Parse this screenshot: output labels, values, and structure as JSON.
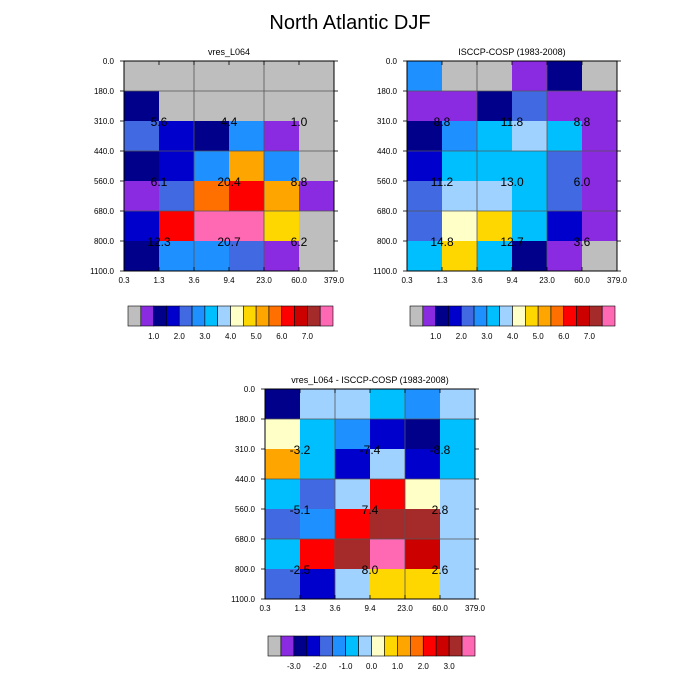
{
  "title": "North Atlantic DJF",
  "palette": [
    "#bebebe",
    "#8a2be2",
    "#00008b",
    "#0000cd",
    "#4169e1",
    "#1e90ff",
    "#00bfff",
    "#a0d2ff",
    "#ffffc8",
    "#ffd700",
    "#ffa500",
    "#ff7000",
    "#ff0000",
    "#cd0000",
    "#a52a2a",
    "#ff69b4"
  ],
  "chart_data": [
    {
      "type": "heatmap",
      "title": "vres_L064",
      "x_ticks": [
        "0.3",
        "1.3",
        "3.6",
        "9.4",
        "23.0",
        "60.0",
        "379.0"
      ],
      "y_ticks": [
        "0.0",
        "180.0",
        "310.0",
        "440.0",
        "560.0",
        "680.0",
        "800.0",
        "1100.0"
      ],
      "cells": [
        [
          0,
          0,
          0,
          0,
          0,
          0
        ],
        [
          2,
          0,
          0,
          0,
          0,
          0
        ],
        [
          4,
          3,
          2,
          5,
          1,
          0
        ],
        [
          2,
          3,
          5,
          10,
          5,
          0
        ],
        [
          1,
          4,
          11,
          12,
          10,
          1
        ],
        [
          3,
          12,
          15,
          15,
          9,
          0
        ],
        [
          2,
          5,
          5,
          4,
          1,
          0
        ]
      ],
      "box_values": [
        [
          "5.6",
          "4.4",
          "1.0"
        ],
        [
          "6.1",
          "20.4",
          "8.8"
        ],
        [
          "12.3",
          "20.7",
          "6.2"
        ]
      ],
      "colorbar_labels": [
        "1.0",
        "2.0",
        "3.0",
        "4.0",
        "5.0",
        "6.0",
        "7.0"
      ]
    },
    {
      "type": "heatmap",
      "title": "ISCCP-COSP (1983-2008)",
      "x_ticks": [
        "0.3",
        "1.3",
        "3.6",
        "9.4",
        "23.0",
        "60.0",
        "379.0"
      ],
      "y_ticks": [
        "0.0",
        "180.0",
        "310.0",
        "440.0",
        "560.0",
        "680.0",
        "800.0",
        "1100.0"
      ],
      "cells": [
        [
          5,
          0,
          0,
          1,
          2,
          0
        ],
        [
          1,
          1,
          2,
          4,
          1,
          1
        ],
        [
          2,
          5,
          6,
          7,
          6,
          1
        ],
        [
          3,
          6,
          6,
          6,
          4,
          1
        ],
        [
          4,
          7,
          7,
          6,
          4,
          1
        ],
        [
          4,
          8,
          9,
          6,
          3,
          1
        ],
        [
          6,
          9,
          6,
          2,
          1,
          0
        ]
      ],
      "box_values": [
        [
          "8.8",
          "11.8",
          "8.8"
        ],
        [
          "11.2",
          "13.0",
          "6.0"
        ],
        [
          "14.8",
          "12.7",
          "3.6"
        ]
      ],
      "colorbar_labels": [
        "1.0",
        "2.0",
        "3.0",
        "4.0",
        "5.0",
        "6.0",
        "7.0"
      ]
    },
    {
      "type": "heatmap",
      "title": "vres_L064 - ISCCP-COSP (1983-2008)",
      "x_ticks": [
        "0.3",
        "1.3",
        "3.6",
        "9.4",
        "23.0",
        "60.0",
        "379.0"
      ],
      "y_ticks": [
        "0.0",
        "180.0",
        "310.0",
        "440.0",
        "560.0",
        "680.0",
        "800.0",
        "1100.0"
      ],
      "cells": [
        [
          2,
          7,
          7,
          6,
          5,
          7
        ],
        [
          8,
          6,
          5,
          3,
          2,
          6
        ],
        [
          10,
          6,
          3,
          7,
          3,
          6
        ],
        [
          6,
          4,
          7,
          12,
          8,
          7
        ],
        [
          4,
          5,
          12,
          14,
          14,
          7
        ],
        [
          6,
          12,
          14,
          15,
          13,
          7
        ],
        [
          4,
          3,
          7,
          9,
          9,
          7
        ]
      ],
      "box_values": [
        [
          "-3.2",
          "-7.4",
          "-8.8"
        ],
        [
          "-5.1",
          "7.4",
          "2.8"
        ],
        [
          "-2.5",
          "8.0",
          "2.6"
        ]
      ],
      "colorbar_labels": [
        "-3.0",
        "-2.0",
        "-1.0",
        "0.0",
        "1.0",
        "2.0",
        "3.0"
      ]
    }
  ]
}
